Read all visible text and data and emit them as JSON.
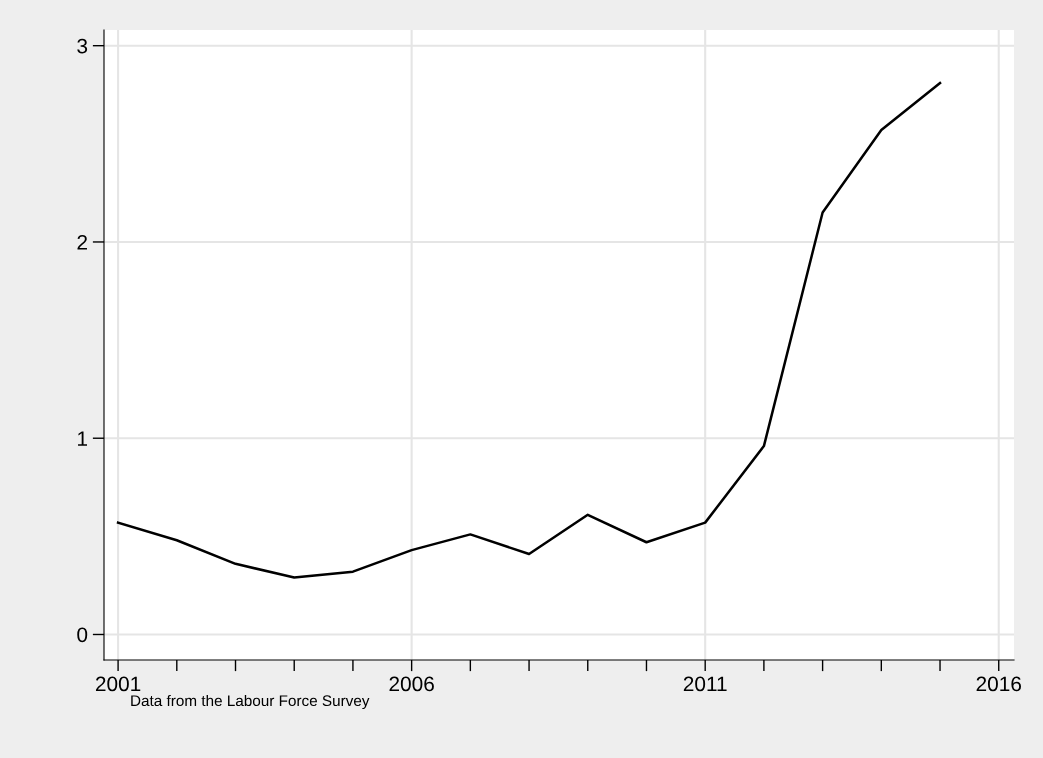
{
  "chart_data": {
    "type": "line",
    "x": [
      2001,
      2002,
      2003,
      2004,
      2005,
      2006,
      2007,
      2008,
      2009,
      2010,
      2011,
      2012,
      2013,
      2014,
      2015
    ],
    "series": [
      {
        "color": "#000000",
        "values": [
          0.57,
          0.48,
          0.36,
          0.29,
          0.32,
          0.43,
          0.51,
          0.41,
          0.61,
          0.47,
          0.57,
          0.96,
          2.15,
          2.57,
          2.81
        ]
      }
    ],
    "xlim": [
      2000.76,
      2016.26
    ],
    "ylim": [
      -0.13,
      3.08
    ],
    "xticks": [
      2001,
      {
        "value": 2002,
        "label": null
      },
      {
        "value": 2003,
        "label": null
      },
      {
        "value": 2004,
        "label": null
      },
      {
        "value": 2005,
        "label": null
      },
      2006,
      {
        "value": 2007,
        "label": null
      },
      {
        "value": 2008,
        "label": null
      },
      {
        "value": 2009,
        "label": null
      },
      {
        "value": 2010,
        "label": null
      },
      2011,
      {
        "value": 2012,
        "label": null
      },
      {
        "value": 2013,
        "label": null
      },
      {
        "value": 2014,
        "label": null
      },
      {
        "value": 2015,
        "label": null
      },
      2016
    ],
    "yticks": [
      0,
      1,
      2,
      3
    ],
    "grid": true,
    "marker": "none",
    "line_style": "solid",
    "annotations": [
      "Data from the Labour Force Survey"
    ]
  }
}
